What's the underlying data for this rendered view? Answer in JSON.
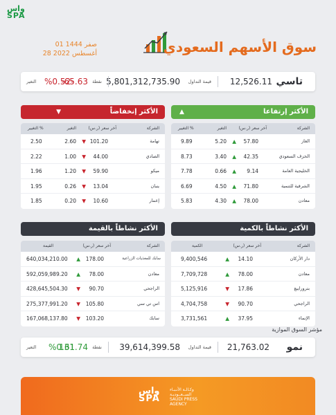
{
  "brand": {
    "logo_line1": "واس",
    "logo_line2": "SPA"
  },
  "header": {
    "title": "سوق الأسهم السعودي",
    "hijri_date": "01 صفر 1444",
    "greg_date": "28 أغسطس 2022"
  },
  "tasi": {
    "name": "تاسي",
    "value": "12,526.11",
    "volume_label": "قيمة التداول",
    "volume": "5,801,312,735.90",
    "points_label": "نقطة",
    "points": "-65.63",
    "change_label": "التغير",
    "change": "%0.52-"
  },
  "gainers": {
    "title": "الأكثر إرتفاعا",
    "arrow": "▲",
    "columns": {
      "company": "الشركة",
      "last": "آخر سعر (ر.س)",
      "change": "التغير",
      "pct": "التغيير %"
    },
    "rows": [
      {
        "name": "الغاز",
        "last": "57.80",
        "change": "5.20",
        "pct": "9.89"
      },
      {
        "name": "الخزف السعودي",
        "last": "42.35",
        "change": "3.40",
        "pct": "8.73"
      },
      {
        "name": "الخليجية العامة",
        "last": "9.14",
        "change": "0.66",
        "pct": "7.78"
      },
      {
        "name": "الشرقية للتنمية",
        "last": "71.80",
        "change": "4.50",
        "pct": "6.69"
      },
      {
        "name": "معادن",
        "last": "78.00",
        "change": "4.30",
        "pct": "5.83"
      }
    ]
  },
  "losers": {
    "title": "الأكثر إنخفاضاً",
    "arrow": "▼",
    "columns": {
      "company": "الشركة",
      "last": "آخر سعر (ر.س)",
      "change": "التغير",
      "pct": "التغيير %"
    },
    "rows": [
      {
        "name": "تهامة",
        "last": "101.20",
        "change": "2.60",
        "pct": "2.50"
      },
      {
        "name": "الصادي",
        "last": "44.00",
        "change": "1.00",
        "pct": "2.22"
      },
      {
        "name": "ميكو",
        "last": "59.90",
        "change": "1.20",
        "pct": "1.96"
      },
      {
        "name": "ينبان",
        "last": "13.04",
        "change": "0.26",
        "pct": "1.95"
      },
      {
        "name": "إعمار",
        "last": "10.60",
        "change": "0.20",
        "pct": "1.85"
      }
    ]
  },
  "by_volume": {
    "title": "الأكثر نشاطاً بالكمية",
    "columns": {
      "company": "الشركة",
      "last": "آخر سعر (ر.س)",
      "qty": "الكمية"
    },
    "rows": [
      {
        "name": "دار الأركان",
        "last": "14.10",
        "qty": "9,400,546"
      },
      {
        "name": "معادن",
        "last": "78.00",
        "qty": "7,709,728"
      },
      {
        "name": "بتروراييغ",
        "last": "17.86",
        "qty": "5,125,916"
      },
      {
        "name": "الراجحي",
        "last": "90.70",
        "qty": "4,704,758"
      },
      {
        "name": "الإنماء",
        "last": "37.95",
        "qty": "3,731,561"
      }
    ]
  },
  "by_value": {
    "title": "الأكثر نشاطاً بالقيمة",
    "columns": {
      "company": "الشركة",
      "last": "آخر سعر (ر.س)",
      "value": "القيمة"
    },
    "rows": [
      {
        "name": "سابك للمغذيات الزراعية",
        "last": "178.00",
        "value": "640,034,210.00"
      },
      {
        "name": "معادن",
        "last": "78.00",
        "value": "592,059,989.20"
      },
      {
        "name": "الراجحي",
        "last": "90.70",
        "value": "428,645,504.30"
      },
      {
        "name": "اس تي سي",
        "last": "105.80",
        "value": "275,377,991.20"
      },
      {
        "name": "سابك",
        "last": "103.20",
        "value": "167,068,137.80"
      }
    ]
  },
  "parallel": {
    "label": "مؤشر السوق الموازية",
    "name": "نمو",
    "value": "21,763.02",
    "volume_label": "قيمة التداول",
    "volume": "39,614,399.58",
    "points_label": "نقطة",
    "points": "131.74",
    "change_label": "التغير",
    "change": "%0.61"
  },
  "footer": {
    "logo_line1": "واس",
    "logo_line2": "SPA",
    "org_ar1": "وكـالـة الأنـبـاء",
    "org_ar2": "الســعــوديـة",
    "org_en1": "SAUDI PRESS",
    "org_en2": "AGENCY"
  },
  "colors": {
    "accent": "#e46b1e",
    "green": "#5fb049",
    "red": "#c6262e",
    "dark": "#373a42"
  }
}
